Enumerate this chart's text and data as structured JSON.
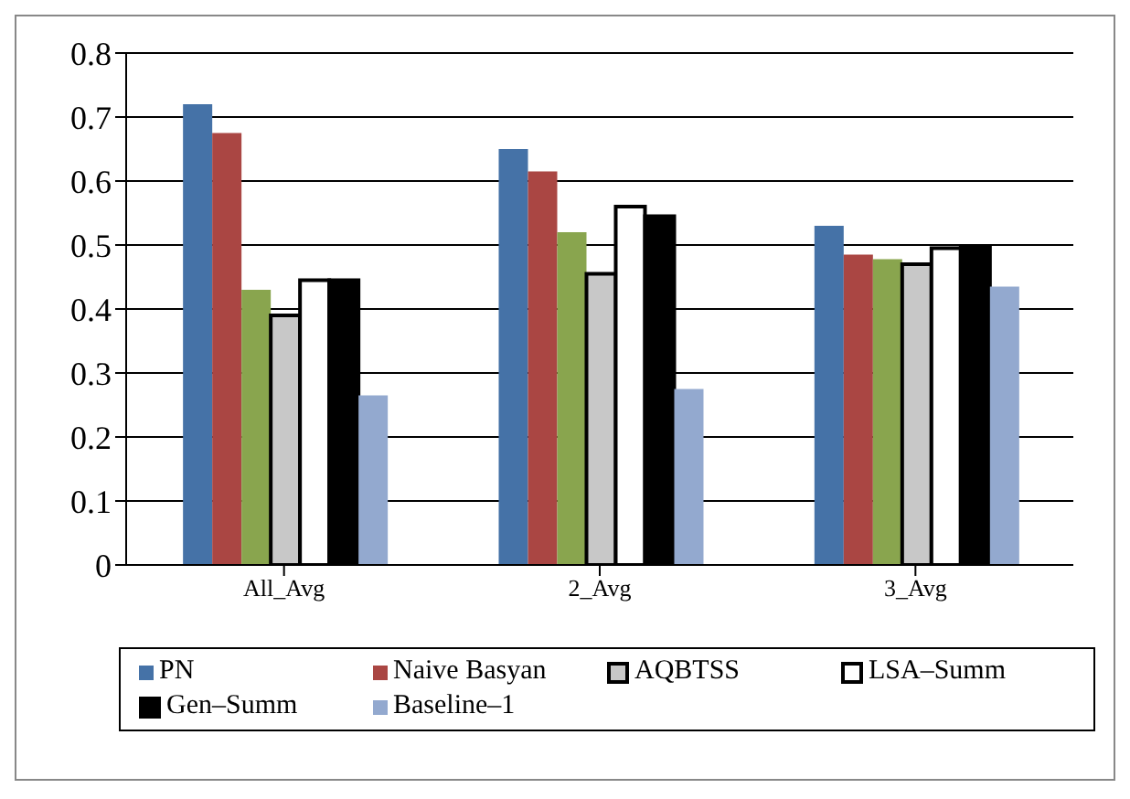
{
  "chart_data": {
    "type": "bar",
    "categories": [
      "All_Avg",
      "2_Avg",
      "3_Avg"
    ],
    "series": [
      {
        "name": "PN",
        "color": "#4572a7",
        "values": [
          0.72,
          0.65,
          0.53
        ]
      },
      {
        "name": "Naive Basyan",
        "color": "#aa4643",
        "values": [
          0.675,
          0.615,
          0.485
        ]
      },
      {
        "color": "#89a54e",
        "values": [
          0.43,
          0.52,
          0.478
        ]
      },
      {
        "name": "AQBTSS",
        "color": "#c8c8c8",
        "values": [
          0.39,
          0.455,
          0.47
        ]
      },
      {
        "name": "LSA–Summ",
        "color": "#ffffff",
        "values": [
          0.445,
          0.56,
          0.495
        ]
      },
      {
        "name": "Gen–Summ",
        "color": "#000000",
        "values": [
          0.445,
          0.545,
          0.498
        ]
      },
      {
        "name": "Baseline–1",
        "color": "#93a9cf",
        "values": [
          0.265,
          0.275,
          0.435
        ]
      }
    ],
    "ylim": [
      0,
      0.8
    ],
    "yticks": [
      0,
      0.1,
      0.2,
      0.3,
      0.4,
      0.5,
      0.6,
      0.7,
      0.8
    ],
    "grid": "y",
    "legend": "bottom"
  }
}
